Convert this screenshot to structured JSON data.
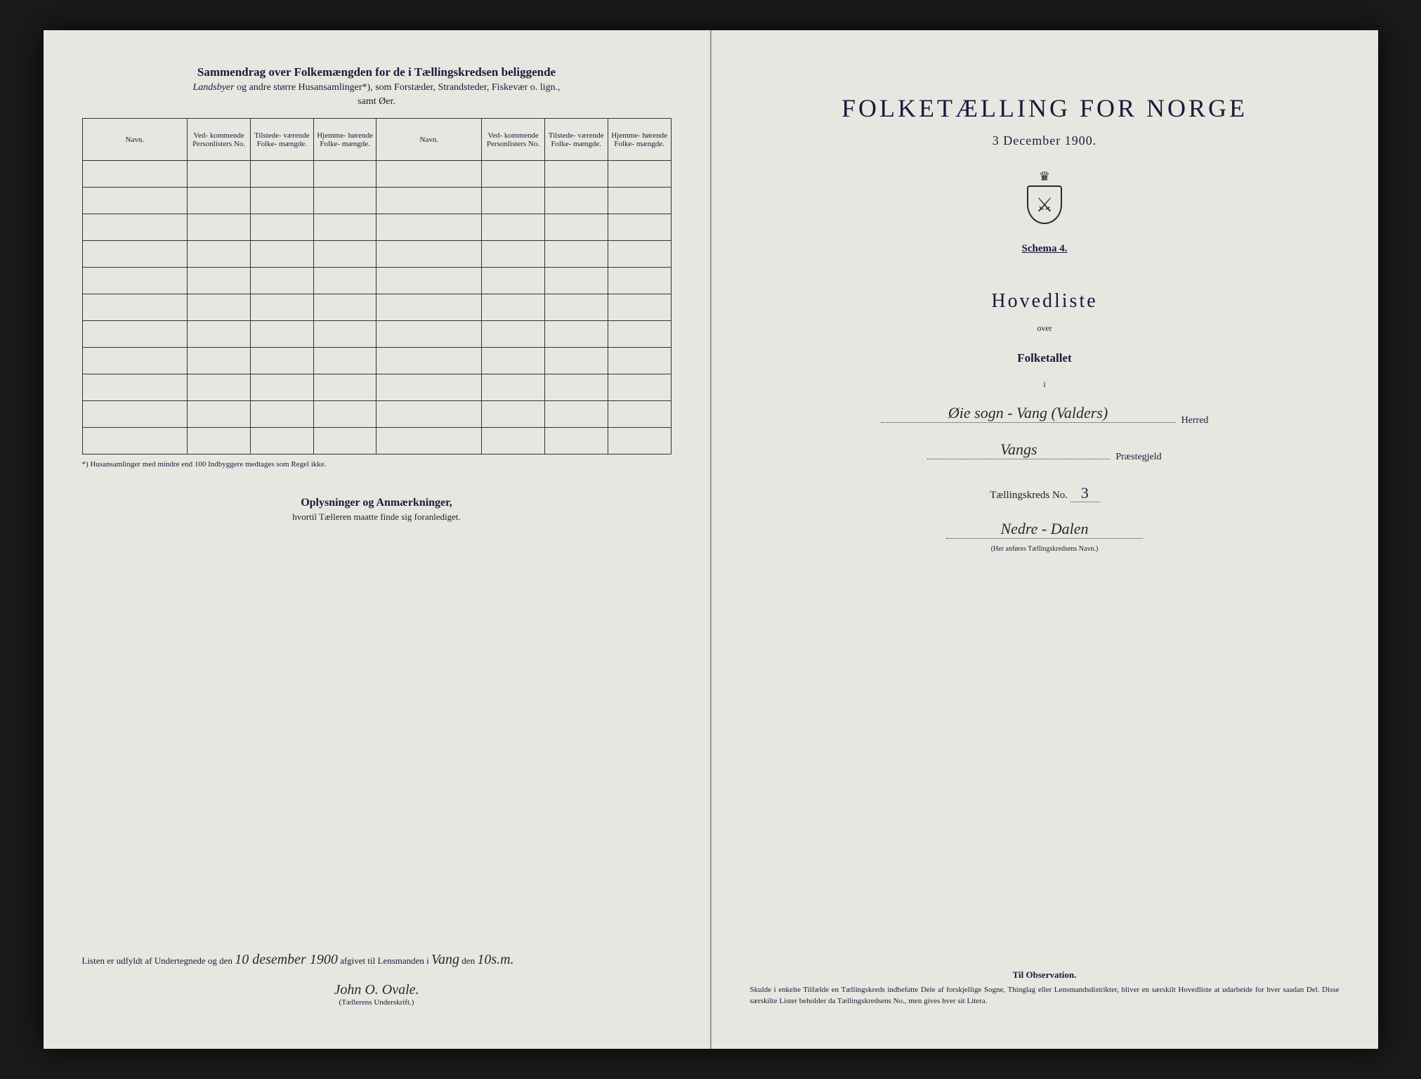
{
  "left": {
    "header_bold": "Sammendrag over Folkemængden for de i Tællingskredsen beliggende",
    "header_sub_italic": "Landsbyer",
    "header_sub_rest": " og andre større Husansamlinger*), som Forstæder, Strandsteder, Fiskevær o. lign.,",
    "header_sub_line2": "samt Øer.",
    "columns": [
      "Navn.",
      "Ved-\nkommende\nPersonlisters\nNo.",
      "Tilstede-\nværende\nFolke-\nmængde.",
      "Hjemme-\nhørende\nFolke-\nmængde.",
      "Navn.",
      "Ved-\nkommende\nPersonlisters\nNo.",
      "Tilstede-\nværende\nFolke-\nmængde.",
      "Hjemme-\nhørende\nFolke-\nmængde."
    ],
    "rows": 11,
    "footnote": "*) Husansamlinger med mindre end 100 Indbyggere medtages som Regel ikke.",
    "oplys_title": "Oplysninger og Anmærkninger,",
    "oplys_sub": "hvortil Tælleren maatte finde sig foranlediget.",
    "bottom_text_1": "Listen er udfyldt af Undertegnede og den",
    "bottom_date_hw": "10 desember 1900",
    "bottom_text_2": "afgivet til Lensmanden i",
    "bottom_place_hw": "Vang",
    "bottom_text_3": "den",
    "bottom_date2_hw": "10s.m.",
    "signature_hw": "John O. Ovale.",
    "signature_caption": "(Tællerens Underskrift.)"
  },
  "right": {
    "title": "FOLKETÆLLING FOR NORGE",
    "date": "3 December 1900.",
    "schema_label": "Schema",
    "schema_num": "4.",
    "hovedliste": "Hovedliste",
    "over": "over",
    "folketallet": "Folketallet",
    "i": "i",
    "herred_hw": "Øie sogn - Vang (Valders)",
    "herred_label": "Herred",
    "praeste_hw": "Vangs",
    "praeste_label": "Præstegjeld",
    "kreds_label": "Tællingskreds No.",
    "kreds_num": "3",
    "kreds_name_hw": "Nedre - Dalen",
    "kreds_caption": "(Her anføres Tællingskredsens Navn.)",
    "obs_title": "Til Observation.",
    "obs_text": "Skulde i enkelte Tilfælde en Tællingskreds indbefatte Dele af forskjellige Sogne, Thinglag eller Lensmandsdistrikter, bliver en særskilt Hovedliste at udarbeide for hver saadan Del. Disse særskilte Lister beholder da Tællingskredsens No., men gives hver sit Litera."
  }
}
